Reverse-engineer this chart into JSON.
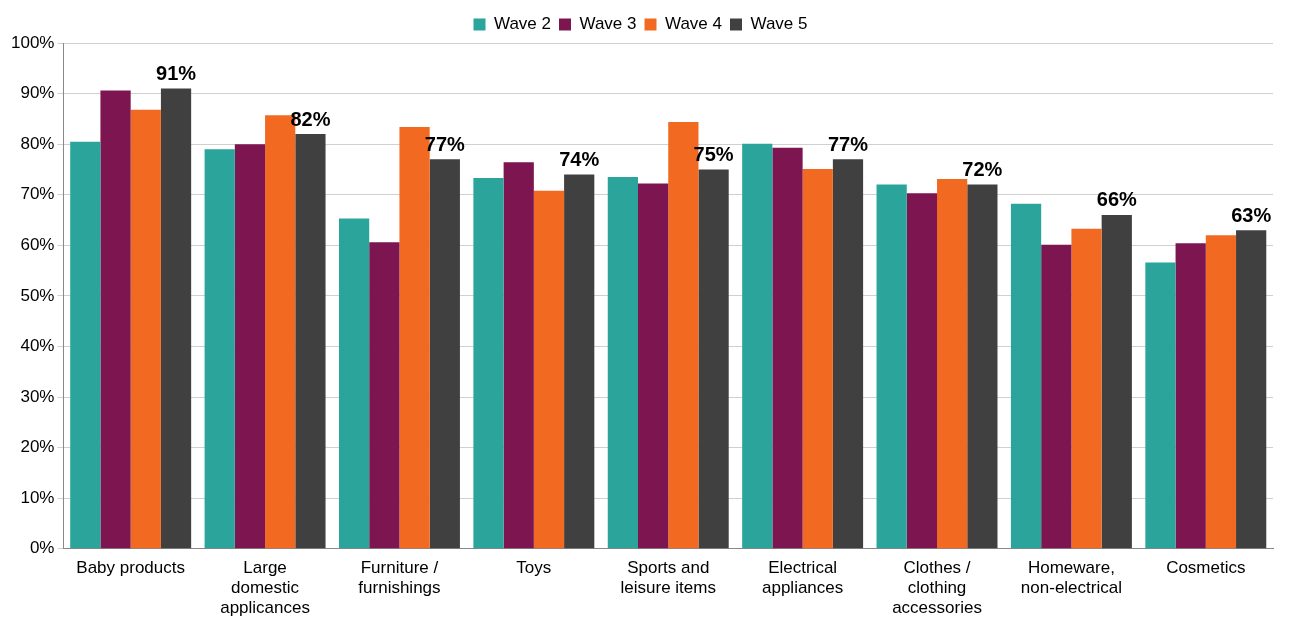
{
  "chart_data": {
    "type": "bar",
    "categories": [
      "Baby products",
      "Large\ndomestic\napplicances",
      "Furniture /\nfurnishings",
      "Toys",
      "Sports and\nleisure items",
      "Electrical\nappliances",
      "Clothes /\nclothing\naccessories",
      "Homeware,\nnon-electrical",
      "Cosmetics"
    ],
    "series": [
      {
        "name": "Wave 2",
        "color": "#2ba59b",
        "values": [
          80.5,
          79,
          65.3,
          73.3,
          73.5,
          80.1,
          72,
          68.2,
          56.6
        ]
      },
      {
        "name": "Wave 3",
        "color": "#7d1650",
        "values": [
          90.6,
          80,
          60.6,
          76.4,
          72.2,
          79.3,
          70.3,
          60.1,
          60.4
        ]
      },
      {
        "name": "Wave 4",
        "color": "#f26a21",
        "values": [
          86.8,
          85.7,
          83.4,
          70.8,
          84.4,
          75.1,
          73.1,
          63.3,
          62
        ]
      },
      {
        "name": "Wave 5",
        "color": "#404040",
        "values": [
          91,
          82,
          77,
          74,
          75,
          77,
          72,
          66,
          63
        ],
        "value_labels": [
          "91%",
          "82%",
          "77%",
          "74%",
          "75%",
          "77%",
          "72%",
          "66%",
          "63%"
        ]
      }
    ],
    "ylim": [
      0,
      100
    ],
    "yticks": [
      {
        "value": 0,
        "label": "0%"
      },
      {
        "value": 10,
        "label": "10%"
      },
      {
        "value": 20,
        "label": "20%"
      },
      {
        "value": 30,
        "label": "30%"
      },
      {
        "value": 40,
        "label": "40%"
      },
      {
        "value": 50,
        "label": "50%"
      },
      {
        "value": 60,
        "label": "60%"
      },
      {
        "value": 70,
        "label": "70%"
      },
      {
        "value": 80,
        "label": "80%"
      },
      {
        "value": 90,
        "label": "90%"
      },
      {
        "value": 100,
        "label": "100%"
      }
    ],
    "grid": "y",
    "legend": "top"
  }
}
